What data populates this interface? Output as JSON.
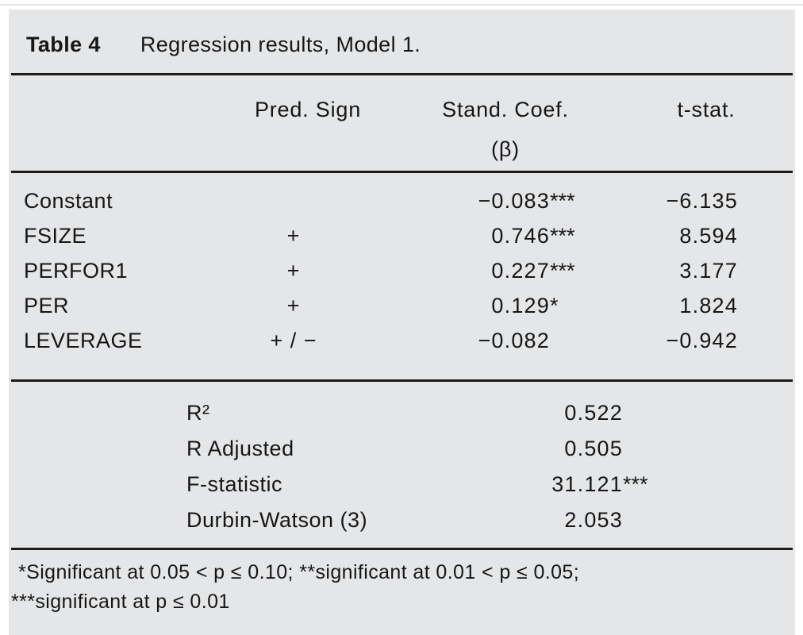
{
  "table": {
    "title_label": "Table 4",
    "title_text": "Regression results, Model 1.",
    "columns": {
      "pred_sign": "Pred. Sign",
      "stand_coef_line1": "Stand. Coef.",
      "stand_coef_line2": "(β)",
      "t_stat": "t-stat."
    },
    "rows": [
      {
        "variable": "Constant",
        "pred_sign": "",
        "coef": "−0.083",
        "coef_stars": "***",
        "t_stat": "−6.135"
      },
      {
        "variable": "FSIZE",
        "pred_sign": "+",
        "coef": "0.746",
        "coef_stars": "***",
        "t_stat": "8.594"
      },
      {
        "variable": "PERFOR1",
        "pred_sign": "+",
        "coef": "0.227",
        "coef_stars": "***",
        "t_stat": "3.177"
      },
      {
        "variable": "PER",
        "pred_sign": "+",
        "coef": "0.129",
        "coef_stars": "*",
        "t_stat": "1.824"
      },
      {
        "variable": "LEVERAGE",
        "pred_sign": "+ / −",
        "coef": "−0.082",
        "coef_stars": "",
        "t_stat": "−0.942"
      }
    ],
    "stats": [
      {
        "label": "R²",
        "value": "0.522",
        "stars": ""
      },
      {
        "label": "R Adjusted",
        "value": "0.505",
        "stars": ""
      },
      {
        "label": "F-statistic",
        "value": "31.121",
        "stars": "***"
      },
      {
        "label": "Durbin-Watson (3)",
        "value": "2.053",
        "stars": ""
      }
    ],
    "footnote_line1": "*Significant at 0.05 < p ≤ 0.10; **significant at 0.01 < p ≤ 0.05;",
    "footnote_line2": "***significant at p ≤ 0.01"
  },
  "colors": {
    "panel_bg": "#e5e6e8",
    "text": "#161616",
    "rule": "#1b1b1b"
  }
}
